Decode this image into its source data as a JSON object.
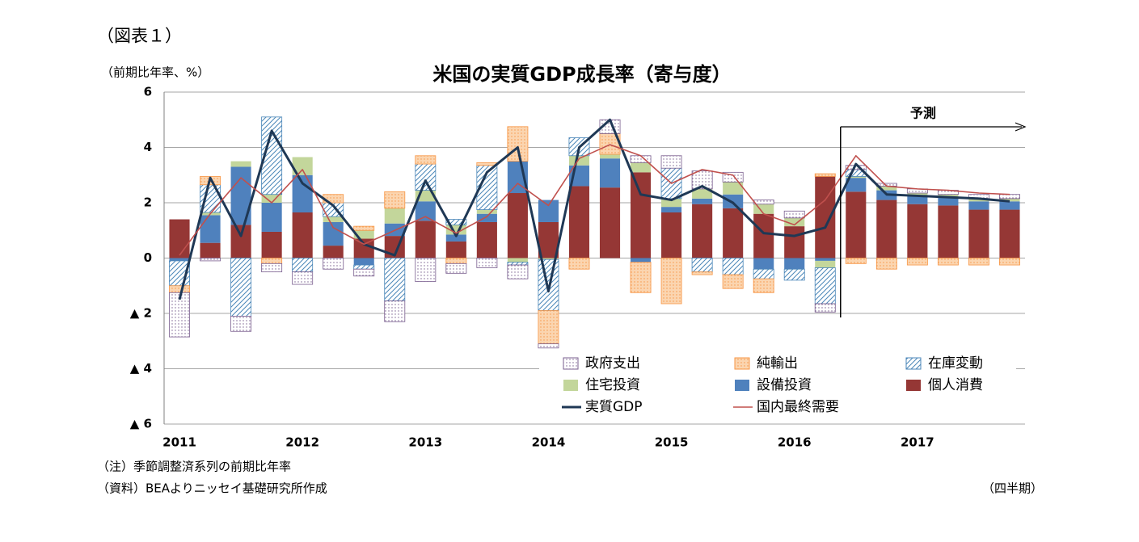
{
  "figure_label": "（図表１）",
  "notes": [
    "（注）季節調整済系列の前期比年率",
    "（資料）BEAよりニッセイ基礎研究所作成"
  ],
  "chart_data": {
    "type": "bar",
    "title": "米国の実質GDP成長率（寄与度）",
    "y_label": "（前期比年率、%）",
    "x_label": "（四半期）",
    "forecast_label": "予測",
    "categories": [
      "2011",
      null,
      null,
      null,
      "2012",
      null,
      null,
      null,
      "2013",
      null,
      null,
      null,
      "2014",
      null,
      null,
      null,
      "2015",
      null,
      null,
      null,
      "2016",
      null,
      null,
      null,
      "2017",
      null,
      null,
      null
    ],
    "ylim": [
      -6,
      6
    ],
    "yticks": [
      6,
      4,
      2,
      0,
      {
        "value": -2,
        "label": "▲ 2"
      },
      {
        "value": -4,
        "label": "▲ 4"
      },
      {
        "value": -6,
        "label": "▲ 6"
      }
    ],
    "grid": true,
    "series": [
      {
        "name": "個人消費",
        "color": "#953735",
        "values": [
          1.4,
          0.55,
          1.2,
          0.95,
          1.65,
          0.45,
          0.7,
          0.8,
          1.35,
          0.6,
          1.3,
          2.35,
          1.3,
          2.6,
          2.55,
          3.1,
          1.65,
          1.95,
          1.8,
          1.6,
          1.15,
          2.95,
          2.4,
          2.1,
          1.95,
          1.9,
          1.75,
          1.75
        ]
      },
      {
        "name": "設備投資",
        "color": "#4f81bd",
        "values": [
          -0.1,
          1.0,
          2.1,
          1.05,
          1.35,
          0.85,
          -0.25,
          0.45,
          0.7,
          0.25,
          0.3,
          1.15,
          0.8,
          0.75,
          1.05,
          -0.15,
          0.2,
          0.2,
          0.5,
          -0.4,
          -0.4,
          -0.1,
          0.5,
          0.35,
          0.3,
          0.3,
          0.3,
          0.3
        ]
      },
      {
        "name": "住宅投資",
        "color": "#c3d69b",
        "values": [
          0,
          0.1,
          0.2,
          0.3,
          0.65,
          0.2,
          0.3,
          0.55,
          0.4,
          0.35,
          0.15,
          -0.15,
          -0.05,
          0.35,
          0.15,
          0.35,
          0.3,
          0.35,
          0.45,
          0.35,
          0.3,
          -0.25,
          0.05,
          0.15,
          0.1,
          0.1,
          0.1,
          0.1
        ]
      },
      {
        "name": "在庫変動",
        "color": "#4a86b8",
        "values": [
          -0.9,
          1.0,
          -2.1,
          2.8,
          -0.5,
          0.5,
          -0.15,
          -1.55,
          0.95,
          0.2,
          1.6,
          -0.1,
          -1.85,
          0.65,
          0,
          0,
          1.1,
          -0.5,
          -0.6,
          -0.35,
          -0.4,
          -1.3,
          0.25,
          0,
          0,
          0,
          0,
          0
        ]
      },
      {
        "name": "純輸出",
        "color": "#f79646",
        "values": [
          -0.25,
          0.3,
          0,
          -0.2,
          0,
          0.3,
          0.15,
          0.6,
          0.3,
          -0.2,
          0.1,
          1.25,
          -1.2,
          -0.4,
          0.75,
          -1.1,
          -1.65,
          -0.1,
          -0.5,
          -0.5,
          0,
          0.1,
          -0.2,
          -0.4,
          -0.25,
          -0.25,
          -0.25,
          -0.25
        ]
      },
      {
        "name": "政府支出",
        "color": "#7a5f8f",
        "values": [
          -1.6,
          -0.1,
          -0.55,
          -0.3,
          -0.45,
          -0.4,
          -0.25,
          -0.75,
          -0.85,
          -0.35,
          -0.35,
          -0.5,
          -0.15,
          0,
          0.5,
          0.25,
          0.45,
          0.65,
          0.35,
          0.15,
          0.25,
          -0.3,
          0.15,
          0.1,
          0.15,
          0.15,
          0.15,
          0.15
        ]
      },
      {
        "name": "実質GDP",
        "type": "line",
        "color": "#1f3855",
        "values": [
          -1.5,
          2.9,
          0.8,
          4.6,
          2.7,
          1.9,
          0.5,
          0.1,
          2.8,
          0.8,
          3.1,
          4.0,
          -1.2,
          4.0,
          5.0,
          2.3,
          2.1,
          2.6,
          2.0,
          0.9,
          0.8,
          1.1,
          3.4,
          2.3,
          2.25,
          2.2,
          2.15,
          2.05
        ]
      },
      {
        "name": "国内最終需要",
        "type": "line",
        "color": "#c0504d",
        "values": [
          0.1,
          1.6,
          2.9,
          2.0,
          3.2,
          1.1,
          0.5,
          1.0,
          1.5,
          0.9,
          1.5,
          2.7,
          1.9,
          3.6,
          4.1,
          3.7,
          2.7,
          3.2,
          3.0,
          1.6,
          1.2,
          2.1,
          3.7,
          2.6,
          2.5,
          2.45,
          2.35,
          2.3
        ]
      }
    ]
  }
}
